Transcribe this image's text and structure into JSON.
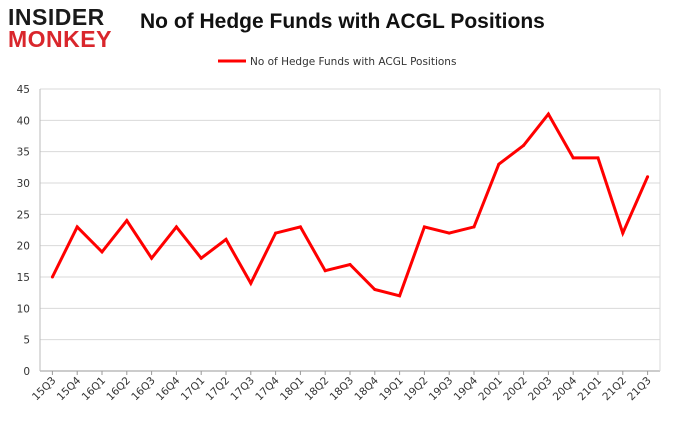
{
  "header": {
    "logo_line1": "INSIDER",
    "logo_line2": "MONKEY",
    "title": "No of Hedge Funds with ACGL Positions"
  },
  "colors": {
    "line": "#ff0000",
    "grid": "#d9d9d9",
    "logo_accent": "#d9262c"
  },
  "chart_data": {
    "type": "line",
    "title": "No of Hedge Funds with ACGL Positions",
    "xlabel": "",
    "ylabel": "",
    "categories": [
      "15Q3",
      "15Q4",
      "16Q1",
      "16Q2",
      "16Q3",
      "16Q4",
      "17Q1",
      "17Q2",
      "17Q3",
      "17Q4",
      "18Q1",
      "18Q2",
      "18Q3",
      "18Q4",
      "19Q1",
      "19Q2",
      "19Q3",
      "19Q4",
      "20Q1",
      "20Q2",
      "20Q3",
      "20Q4",
      "21Q1",
      "21Q2",
      "21Q3"
    ],
    "series": [
      {
        "name": "No of Hedge Funds with ACGL Positions",
        "values": [
          15,
          23,
          19,
          24,
          18,
          23,
          18,
          21,
          14,
          22,
          23,
          16,
          17,
          13,
          12,
          23,
          22,
          23,
          33,
          36,
          41,
          34,
          34,
          22,
          31
        ]
      }
    ],
    "ylim": [
      0,
      45
    ],
    "yticks": [
      0,
      5,
      10,
      15,
      20,
      25,
      30,
      35,
      40,
      45
    ],
    "grid": "horizontal",
    "legend_position": "top-center"
  }
}
